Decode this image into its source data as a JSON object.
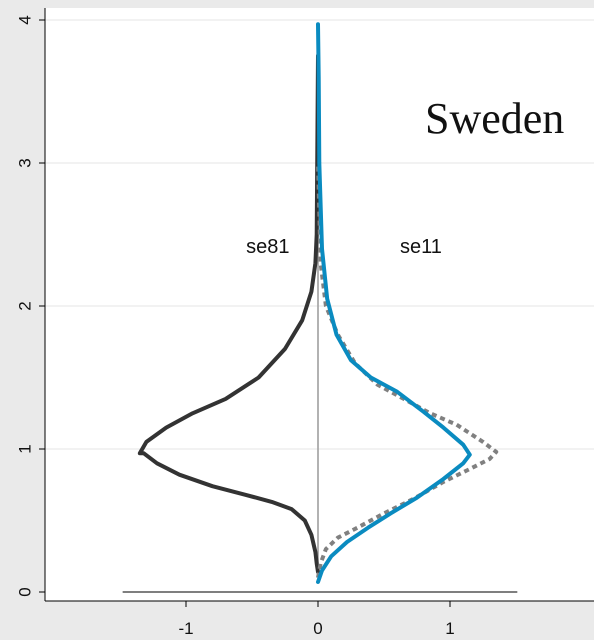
{
  "chart_data": {
    "type": "line",
    "title": "Sweden",
    "xlabel": "",
    "ylabel": "",
    "xlim": [
      -2.3,
      2.1
    ],
    "ylim": [
      -0.05,
      4.1
    ],
    "xticks": [
      -1,
      0,
      1
    ],
    "xtick_labels": [
      "-1",
      "0",
      "1"
    ],
    "yticks": [
      0,
      1,
      2,
      3,
      4
    ],
    "ytick_labels": [
      "0",
      "1",
      "2",
      "3",
      "4"
    ],
    "grid": true,
    "annotations": [
      {
        "text": "se81",
        "x": -0.38,
        "y": 2.37
      },
      {
        "text": "se11",
        "x": 0.78,
        "y": 2.37
      }
    ],
    "series": [
      {
        "color": "#333333",
        "style": "solid",
        "x": [
          0,
          -0.01,
          -0.02,
          -0.05,
          -0.1,
          -0.2,
          -0.35,
          -0.55,
          -0.8,
          -1.05,
          -1.22,
          -1.32,
          -1.35,
          -1.3,
          -1.15,
          -0.95,
          -0.7,
          -0.45,
          -0.25,
          -0.12,
          -0.05,
          -0.02,
          -0.01,
          0
        ],
        "y": [
          0.14,
          0.2,
          0.28,
          0.4,
          0.5,
          0.58,
          0.63,
          0.68,
          0.74,
          0.82,
          0.9,
          0.97,
          0.97,
          1.05,
          1.15,
          1.25,
          1.35,
          1.5,
          1.7,
          1.9,
          2.1,
          2.3,
          2.5,
          3.75
        ]
      },
      {
        "color": "#808080",
        "style": "dotted",
        "x": [
          0,
          0.02,
          0.06,
          0.15,
          0.3,
          0.5,
          0.72,
          0.95,
          1.15,
          1.3,
          1.35,
          1.25,
          1.05,
          0.85,
          0.65,
          0.45,
          0.28,
          0.15,
          0.06,
          0.02,
          0
        ],
        "y": [
          0.1,
          0.2,
          0.3,
          0.38,
          0.45,
          0.55,
          0.65,
          0.77,
          0.86,
          0.93,
          0.98,
          1.05,
          1.17,
          1.25,
          1.35,
          1.45,
          1.6,
          1.8,
          2.0,
          2.3,
          3.0
        ]
      },
      {
        "color": "#0a8bc0",
        "style": "solid",
        "x": [
          0,
          0.03,
          0.1,
          0.22,
          0.38,
          0.55,
          0.75,
          0.95,
          1.1,
          1.15,
          1.1,
          0.95,
          0.8,
          0.6,
          0.4,
          0.25,
          0.14,
          0.07,
          0.03,
          0.01,
          0.005,
          0
        ],
        "y": [
          0.07,
          0.15,
          0.25,
          0.35,
          0.45,
          0.55,
          0.66,
          0.79,
          0.9,
          0.96,
          1.03,
          1.15,
          1.26,
          1.4,
          1.5,
          1.62,
          1.8,
          2.05,
          2.4,
          3.0,
          3.6,
          3.97
        ]
      }
    ],
    "zero_line_color": "#999999",
    "baseline_color": "#555555"
  }
}
